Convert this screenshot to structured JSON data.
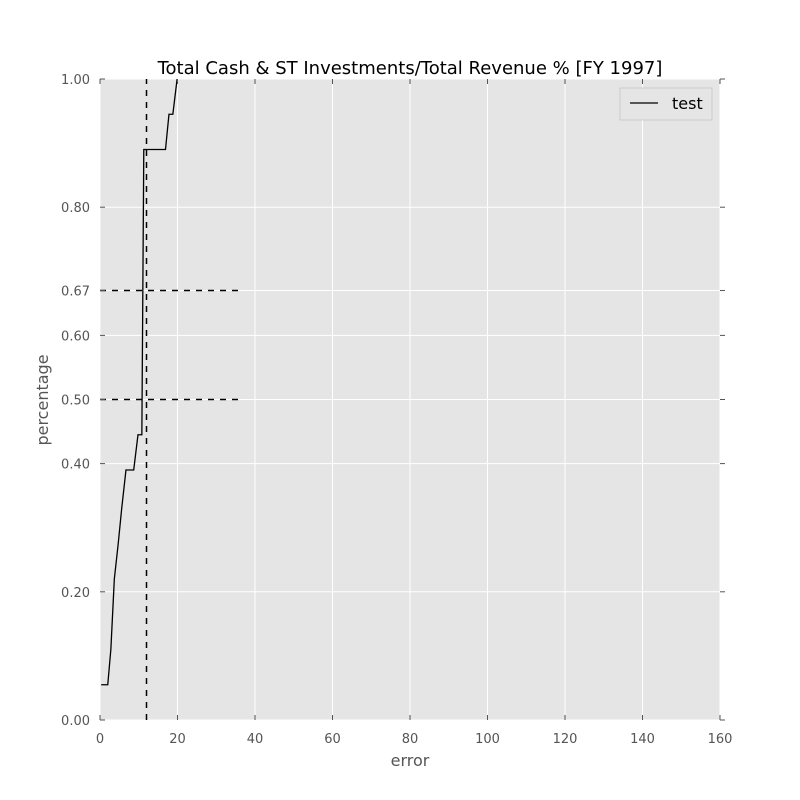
{
  "chart_data": {
    "type": "line",
    "title": "Total Cash & ST Investments/Total Revenue % [FY 1997]",
    "xlabel": "error",
    "ylabel": "percentage",
    "xlim": [
      0,
      160
    ],
    "ylim": [
      0,
      1
    ],
    "xticks": [
      0,
      20,
      40,
      60,
      80,
      100,
      120,
      140,
      160
    ],
    "xtick_labels": [
      "0",
      "20",
      "40",
      "60",
      "80",
      "100",
      "120",
      "140",
      "160"
    ],
    "yticks": [
      0.0,
      0.2,
      0.4,
      0.5,
      0.6,
      0.67,
      0.8,
      1.0
    ],
    "ytick_labels": [
      "0.00",
      "0.20",
      "0.40",
      "0.50",
      "0.60",
      "0.67",
      "0.80",
      "1.00"
    ],
    "grid": true,
    "legend_position": "top-right",
    "series": [
      {
        "name": "test",
        "color": "#000000",
        "x": [
          0.3,
          2.0,
          2.8,
          3.7,
          4.7,
          5.6,
          6.7,
          7.3,
          8.7,
          9.8,
          10.8,
          11.3,
          11.8,
          12.3,
          16.9,
          17.8,
          18.8,
          19.9
        ],
        "y": [
          0.055,
          0.055,
          0.11,
          0.22,
          0.275,
          0.33,
          0.39,
          0.39,
          0.39,
          0.445,
          0.445,
          0.89,
          0.89,
          0.89,
          0.89,
          0.945,
          0.945,
          1.0
        ]
      }
    ],
    "reference_lines": [
      {
        "orientation": "vertical",
        "x": 12,
        "y_range": [
          0,
          1
        ],
        "style": "dashed",
        "color": "#000000"
      },
      {
        "orientation": "horizontal",
        "y": 0.67,
        "x_range": [
          0,
          37
        ],
        "style": "dashed",
        "color": "#000000"
      },
      {
        "orientation": "horizontal",
        "y": 0.5,
        "x_range": [
          0,
          37
        ],
        "style": "dashed",
        "color": "#000000"
      }
    ],
    "colors": {
      "plot_background": "#e5e5e5",
      "grid": "#ffffff",
      "text": "#555555"
    }
  }
}
